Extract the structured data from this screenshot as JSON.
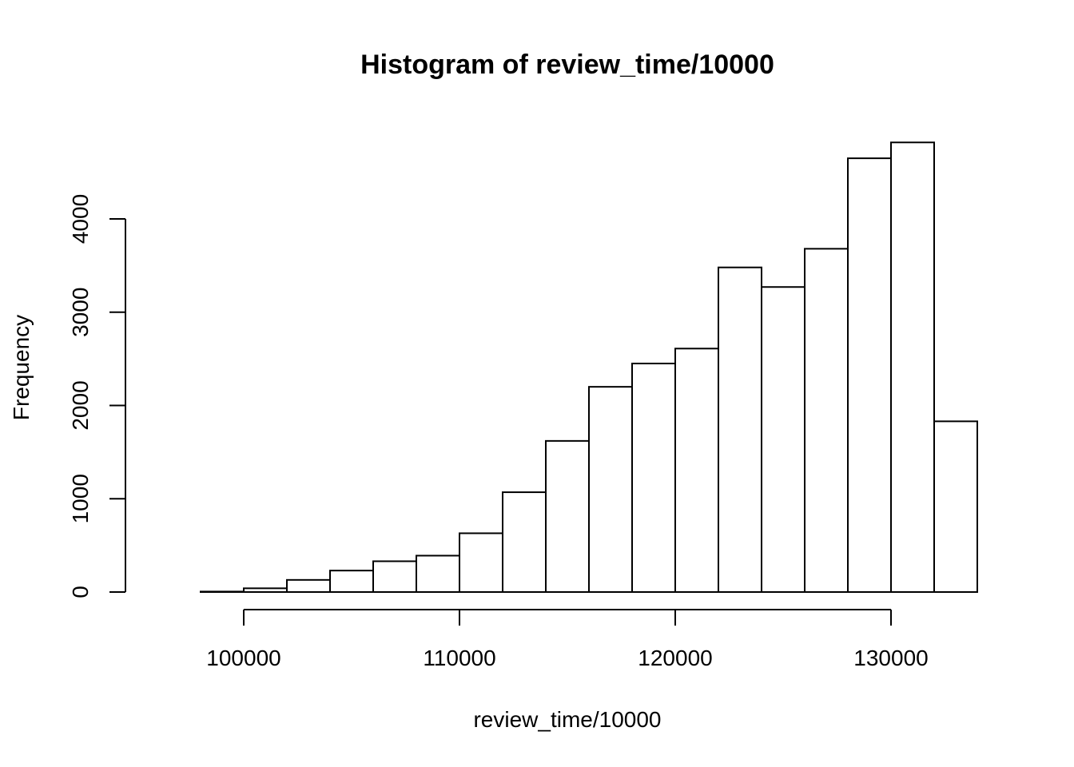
{
  "chart_data": {
    "type": "bar",
    "title": "Histogram of review_time/10000",
    "xlabel": "review_time/10000",
    "ylabel": "Frequency",
    "bins": [
      {
        "start": 96000,
        "end": 98000,
        "count": 0
      },
      {
        "start": 98000,
        "end": 100000,
        "count": 5
      },
      {
        "start": 100000,
        "end": 102000,
        "count": 40
      },
      {
        "start": 102000,
        "end": 104000,
        "count": 130
      },
      {
        "start": 104000,
        "end": 106000,
        "count": 230
      },
      {
        "start": 106000,
        "end": 108000,
        "count": 330
      },
      {
        "start": 108000,
        "end": 110000,
        "count": 390
      },
      {
        "start": 110000,
        "end": 112000,
        "count": 630
      },
      {
        "start": 112000,
        "end": 114000,
        "count": 1070
      },
      {
        "start": 114000,
        "end": 116000,
        "count": 1620
      },
      {
        "start": 116000,
        "end": 118000,
        "count": 2200
      },
      {
        "start": 118000,
        "end": 120000,
        "count": 2450
      },
      {
        "start": 120000,
        "end": 122000,
        "count": 2610
      },
      {
        "start": 122000,
        "end": 124000,
        "count": 3480
      },
      {
        "start": 124000,
        "end": 126000,
        "count": 3270
      },
      {
        "start": 126000,
        "end": 128000,
        "count": 3680
      },
      {
        "start": 128000,
        "end": 130000,
        "count": 4650
      },
      {
        "start": 130000,
        "end": 132000,
        "count": 4820
      },
      {
        "start": 132000,
        "end": 134000,
        "count": 1830
      }
    ],
    "xticks": [
      100000,
      110000,
      120000,
      130000
    ],
    "yticks": [
      0,
      1000,
      2000,
      3000,
      4000
    ],
    "xlim": [
      96000,
      134000
    ],
    "ylim": [
      0,
      4820
    ],
    "grid": false,
    "legend": "none"
  }
}
